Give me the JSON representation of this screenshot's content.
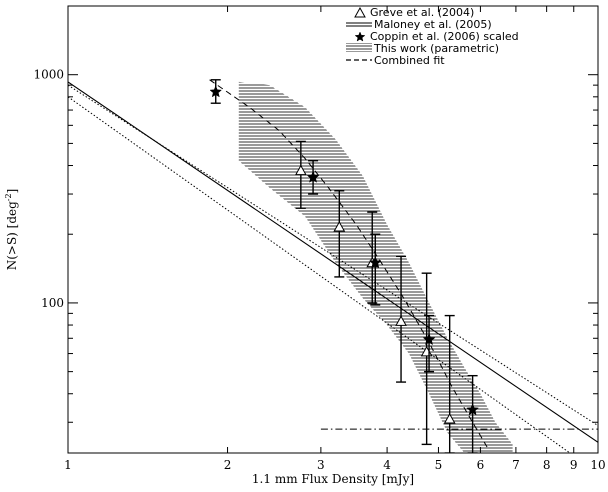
{
  "chart_data": {
    "type": "scatter",
    "title": "",
    "xlabel": "1.1 mm Flux Density [mJy]",
    "ylabel_main": "N(>S) [deg",
    "ylabel_sup": "-2",
    "ylabel_tail": "]",
    "x_scale": "log",
    "y_scale": "log",
    "xlim": [
      1,
      10
    ],
    "ylim": [
      22,
      2000
    ],
    "grid": false,
    "legend_position": "top-right",
    "x_tick_labels": [
      {
        "value": 1,
        "label": "1"
      },
      {
        "value": 2,
        "label": "2"
      },
      {
        "value": 3,
        "label": "3"
      },
      {
        "value": 4,
        "label": "4"
      },
      {
        "value": 5,
        "label": "5"
      },
      {
        "value": 6,
        "label": "6"
      },
      {
        "value": 7,
        "label": "7"
      },
      {
        "value": 8,
        "label": "8"
      },
      {
        "value": 9,
        "label": "9"
      },
      {
        "value": 10,
        "label": "10"
      }
    ],
    "y_tick_labels": [
      {
        "value": 100,
        "label": "100"
      },
      {
        "value": 1000,
        "label": "1000"
      }
    ],
    "legend": [
      {
        "label": "Greve et al. (2004)",
        "marker": "open-triangle"
      },
      {
        "label": "Maloney et al. (2005)",
        "marker": "double-line"
      },
      {
        "label": "Coppin et al. (2006) scaled",
        "marker": "star"
      },
      {
        "label": "This work (parametric)",
        "marker": "hatched-band"
      },
      {
        "label": "Combined fit",
        "marker": "dashed-line"
      }
    ],
    "series": [
      {
        "name": "Greve et al. (2004)",
        "style": "open-triangle",
        "points": [
          {
            "x": 2.75,
            "y": 380,
            "ylo": 260,
            "yhi": 510
          },
          {
            "x": 3.25,
            "y": 215,
            "ylo": 130,
            "yhi": 310
          },
          {
            "x": 3.75,
            "y": 150,
            "ylo": 100,
            "yhi": 250
          },
          {
            "x": 4.25,
            "y": 83,
            "ylo": 45,
            "yhi": 160
          },
          {
            "x": 4.75,
            "y": 61,
            "ylo": 24,
            "yhi": 135
          },
          {
            "x": 5.25,
            "y": 31,
            "ylo": 22,
            "yhi": 88
          }
        ]
      },
      {
        "name": "Coppin et al. (2006) scaled",
        "style": "star",
        "points": [
          {
            "x": 1.9,
            "y": 840,
            "ylo": 750,
            "yhi": 950
          },
          {
            "x": 2.9,
            "y": 355,
            "ylo": 300,
            "yhi": 420
          },
          {
            "x": 3.8,
            "y": 150,
            "ylo": 98,
            "yhi": 200
          },
          {
            "x": 4.8,
            "y": 69,
            "ylo": 50,
            "yhi": 88
          },
          {
            "x": 5.8,
            "y": 34,
            "ylo": 22,
            "yhi": 48
          }
        ]
      },
      {
        "name": "Maloney et al. (2005)",
        "style": "solid",
        "x": [
          1,
          10
        ],
        "y": [
          930,
          24.5
        ]
      },
      {
        "name": "Maloney et al. (2005)",
        "style": "dotted",
        "x": [
          1,
          10
        ],
        "y": [
          900,
          29
        ]
      },
      {
        "name": "Maloney et al. (2005)",
        "style": "dotted",
        "x": [
          1,
          10
        ],
        "y": [
          800,
          18
        ]
      },
      {
        "name": "Combined fit",
        "style": "dashed",
        "x": [
          1.85,
          2.2,
          2.5,
          2.8,
          3.1,
          3.5,
          3.9,
          4.3,
          4.8,
          5.3,
          5.8,
          6.2
        ],
        "y": [
          950,
          720,
          570,
          430,
          320,
          220,
          150,
          105,
          67,
          43,
          30,
          23
        ]
      },
      {
        "name": "This work (parametric)",
        "style": "hatched-band",
        "x": [
          2.1,
          2.4,
          2.8,
          3.2,
          3.6,
          4.0,
          4.4,
          4.8,
          5.2,
          5.6,
          6.0,
          6.4,
          6.9
        ],
        "y_low": [
          420,
          320,
          240,
          150,
          105,
          80,
          60,
          40,
          27,
          22,
          22,
          22,
          22
        ],
        "y_high": [
          930,
          900,
          720,
          520,
          360,
          220,
          150,
          100,
          70,
          52,
          40,
          30,
          24
        ]
      },
      {
        "name": "",
        "style": "dash-dot",
        "x": [
          3,
          10
        ],
        "y": [
          28,
          28
        ]
      }
    ]
  }
}
